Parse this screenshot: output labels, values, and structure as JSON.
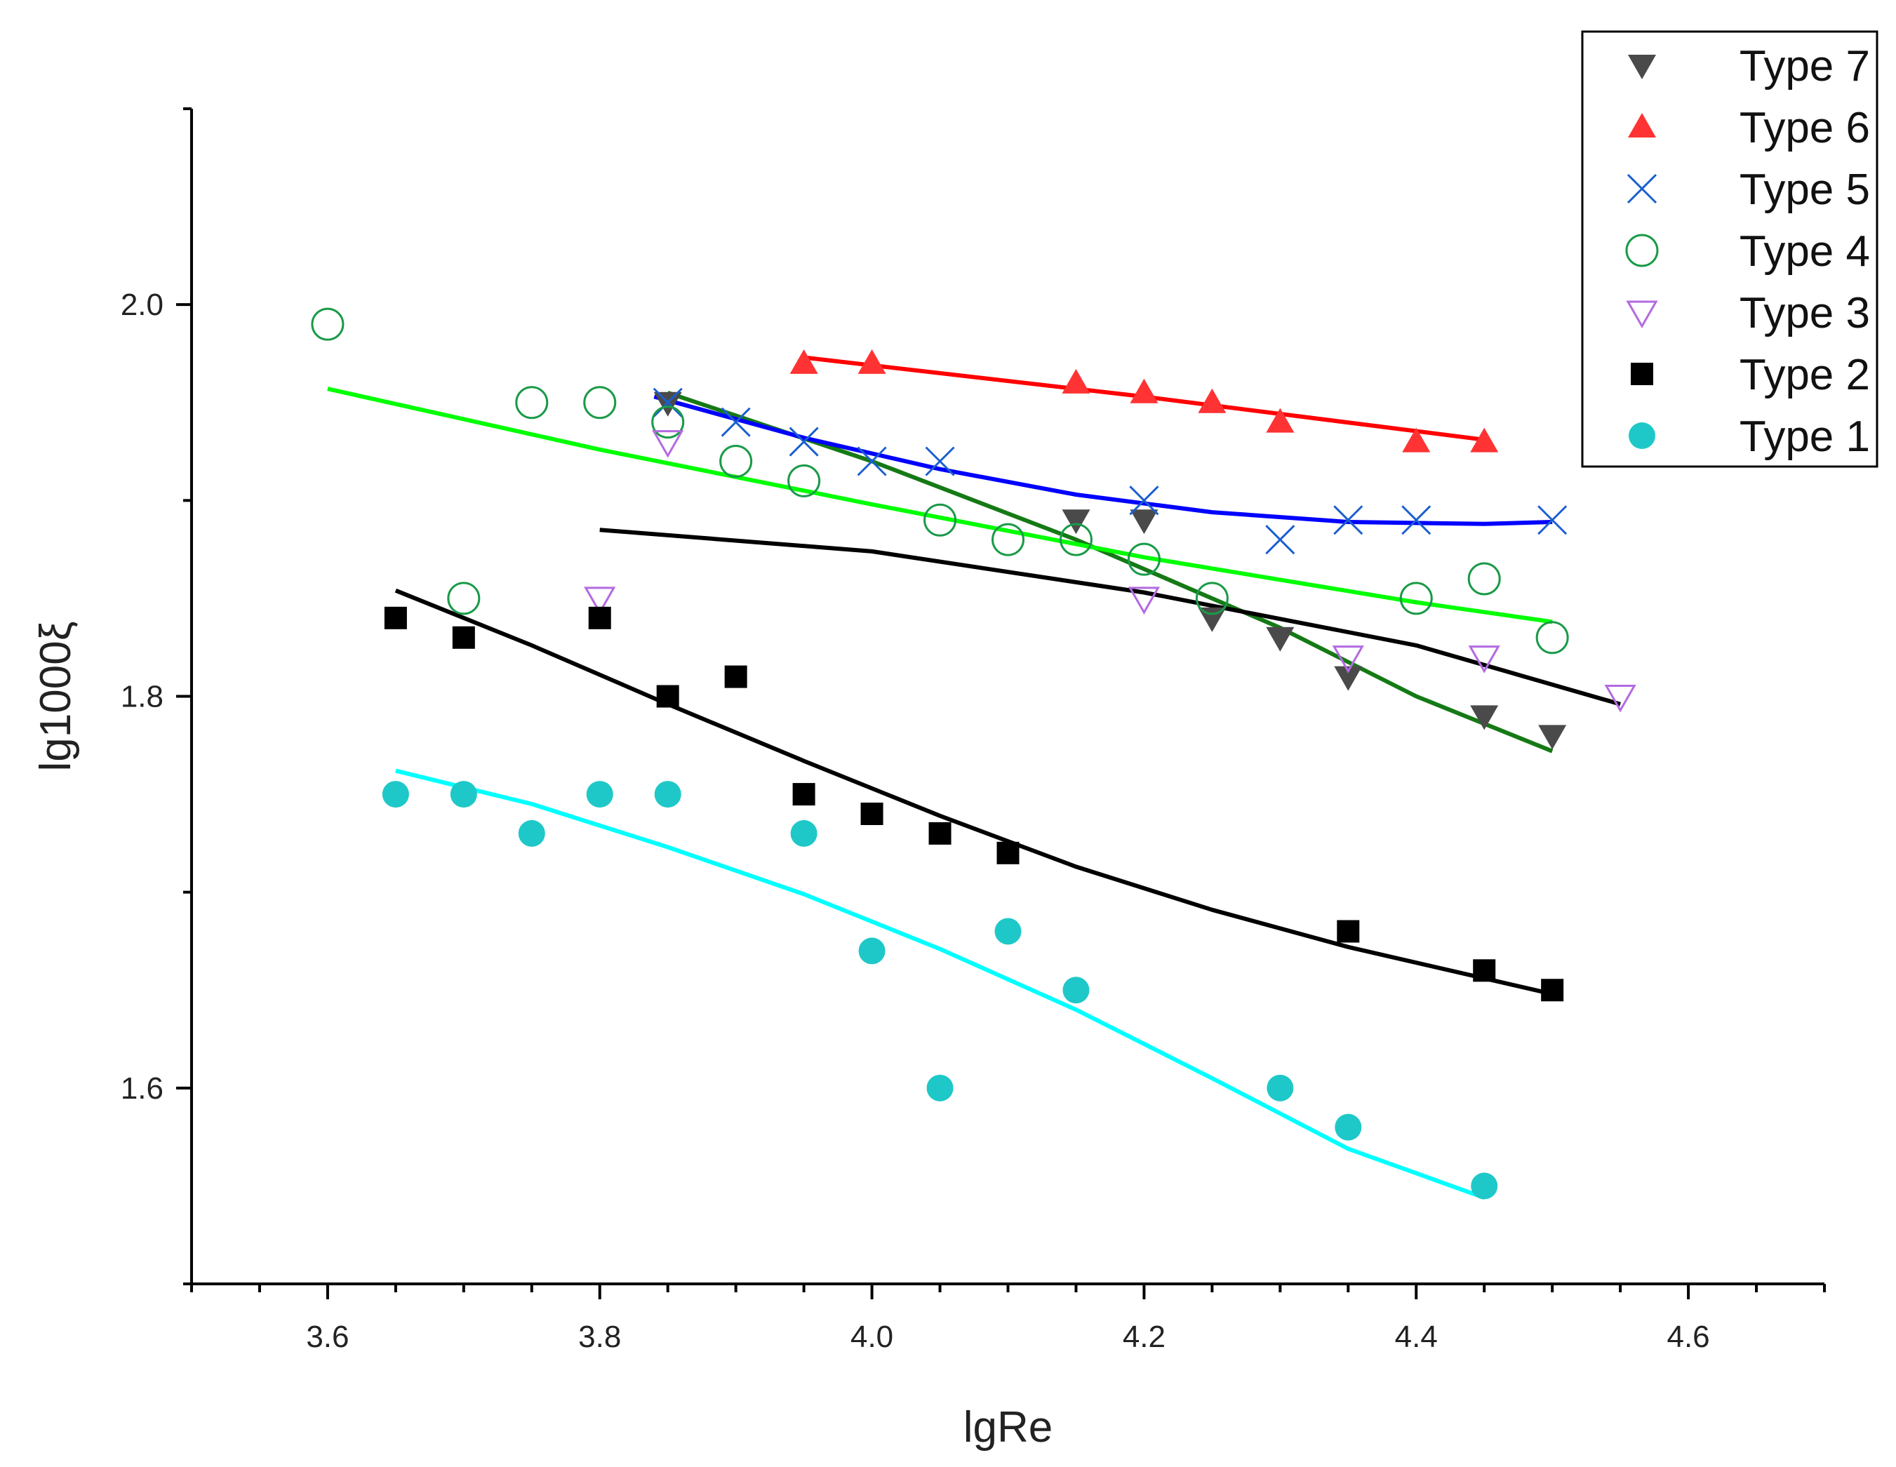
{
  "chart_data": {
    "type": "scatter",
    "title": "",
    "xlabel": "lgRe",
    "ylabel": "lg1000ξ",
    "xlim": [
      3.5,
      4.7
    ],
    "ylim": [
      1.5,
      2.1
    ],
    "x_ticks": [
      3.6,
      3.8,
      4.0,
      4.2,
      4.4,
      4.6
    ],
    "x_tick_labels": [
      "3.6",
      "3.8",
      "4.0",
      "4.2",
      "4.4",
      "4.6"
    ],
    "y_ticks": [
      1.6,
      1.8,
      2.0
    ],
    "y_tick_labels": [
      "1.6",
      "1.8",
      "2.0"
    ],
    "grid": false,
    "legend_position": "top-right",
    "series": [
      {
        "name": "Type 7",
        "marker": "triangle-down-filled",
        "marker_color": "#4a4a4a",
        "x": [
          3.85,
          4.15,
          4.2,
          4.25,
          4.3,
          4.35,
          4.45,
          4.5
        ],
        "y": [
          1.95,
          1.89,
          1.89,
          1.84,
          1.83,
          1.81,
          1.79,
          1.78
        ],
        "fit": {
          "color": "#157a15",
          "x": [
            3.85,
            4.0,
            4.15,
            4.3,
            4.4,
            4.5
          ],
          "y": [
            1.955,
            1.92,
            1.88,
            1.835,
            1.8,
            1.772
          ]
        }
      },
      {
        "name": "Type 6",
        "marker": "triangle-up-filled",
        "marker_color": "#ff3333",
        "x": [
          3.95,
          4.0,
          4.15,
          4.2,
          4.25,
          4.3,
          4.4,
          4.45
        ],
        "y": [
          1.97,
          1.97,
          1.96,
          1.955,
          1.95,
          1.94,
          1.93,
          1.93
        ],
        "fit": {
          "color": "#ff0000",
          "x": [
            3.95,
            4.2,
            4.45
          ],
          "y": [
            1.973,
            1.953,
            1.931
          ]
        }
      },
      {
        "name": "Type 5",
        "marker": "x",
        "marker_color": "#1a5fd0",
        "x": [
          3.85,
          3.9,
          3.95,
          4.0,
          4.05,
          4.2,
          4.3,
          4.35,
          4.4,
          4.5
        ],
        "y": [
          1.95,
          1.94,
          1.93,
          1.92,
          1.92,
          1.9,
          1.88,
          1.89,
          1.89,
          1.89
        ],
        "fit": {
          "color": "#0000ff",
          "x": [
            3.84,
            3.95,
            4.05,
            4.15,
            4.25,
            4.35,
            4.45,
            4.5
          ],
          "y": [
            1.953,
            1.932,
            1.916,
            1.903,
            1.894,
            1.889,
            1.888,
            1.889
          ]
        }
      },
      {
        "name": "Type 4",
        "marker": "circle-open",
        "marker_color": "#1a9a48",
        "x": [
          3.6,
          3.7,
          3.75,
          3.8,
          3.85,
          3.9,
          3.95,
          4.05,
          4.1,
          4.15,
          4.2,
          4.25,
          4.4,
          4.45,
          4.5
        ],
        "y": [
          1.99,
          1.85,
          1.95,
          1.95,
          1.94,
          1.92,
          1.91,
          1.89,
          1.88,
          1.88,
          1.87,
          1.85,
          1.85,
          1.86,
          1.83
        ],
        "fit": {
          "color": "#00ff00",
          "x": [
            3.6,
            3.8,
            4.0,
            4.2,
            4.4,
            4.5
          ],
          "y": [
            1.957,
            1.926,
            1.898,
            1.871,
            1.848,
            1.838
          ]
        }
      },
      {
        "name": "Type 3",
        "marker": "triangle-down-open",
        "marker_color": "#b36ae0",
        "x": [
          3.8,
          3.85,
          4.2,
          4.35,
          4.45,
          4.55
        ],
        "y": [
          1.85,
          1.93,
          1.85,
          1.82,
          1.82,
          1.8
        ],
        "fit": {
          "color": "#000000",
          "x": [
            3.8,
            4.0,
            4.2,
            4.4,
            4.55
          ],
          "y": [
            1.885,
            1.874,
            1.853,
            1.826,
            1.796
          ]
        }
      },
      {
        "name": "Type 2",
        "marker": "square-filled",
        "marker_color": "#000000",
        "x": [
          3.65,
          3.7,
          3.8,
          3.85,
          3.9,
          3.95,
          4.0,
          4.05,
          4.1,
          4.35,
          4.45,
          4.5
        ],
        "y": [
          1.84,
          1.83,
          1.84,
          1.8,
          1.81,
          1.75,
          1.74,
          1.73,
          1.72,
          1.68,
          1.66,
          1.65
        ],
        "fit": {
          "color": "#000000",
          "x": [
            3.65,
            3.75,
            3.85,
            3.95,
            4.05,
            4.15,
            4.25,
            4.35,
            4.5
          ],
          "y": [
            1.854,
            1.826,
            1.796,
            1.767,
            1.739,
            1.713,
            1.691,
            1.672,
            1.648
          ]
        }
      },
      {
        "name": "Type 1",
        "marker": "circle-filled",
        "marker_color": "#1ec8c8",
        "x": [
          3.65,
          3.7,
          3.75,
          3.8,
          3.85,
          3.95,
          4.0,
          4.05,
          4.1,
          4.15,
          4.3,
          4.35,
          4.45
        ],
        "y": [
          1.75,
          1.75,
          1.73,
          1.75,
          1.75,
          1.73,
          1.67,
          1.6,
          1.68,
          1.65,
          1.6,
          1.58,
          1.55
        ],
        "fit": {
          "color": "#00ffff",
          "x": [
            3.65,
            3.75,
            3.85,
            3.95,
            4.05,
            4.15,
            4.25,
            4.35,
            4.45
          ],
          "y": [
            1.762,
            1.745,
            1.723,
            1.699,
            1.671,
            1.64,
            1.605,
            1.569,
            1.544
          ]
        }
      }
    ]
  }
}
